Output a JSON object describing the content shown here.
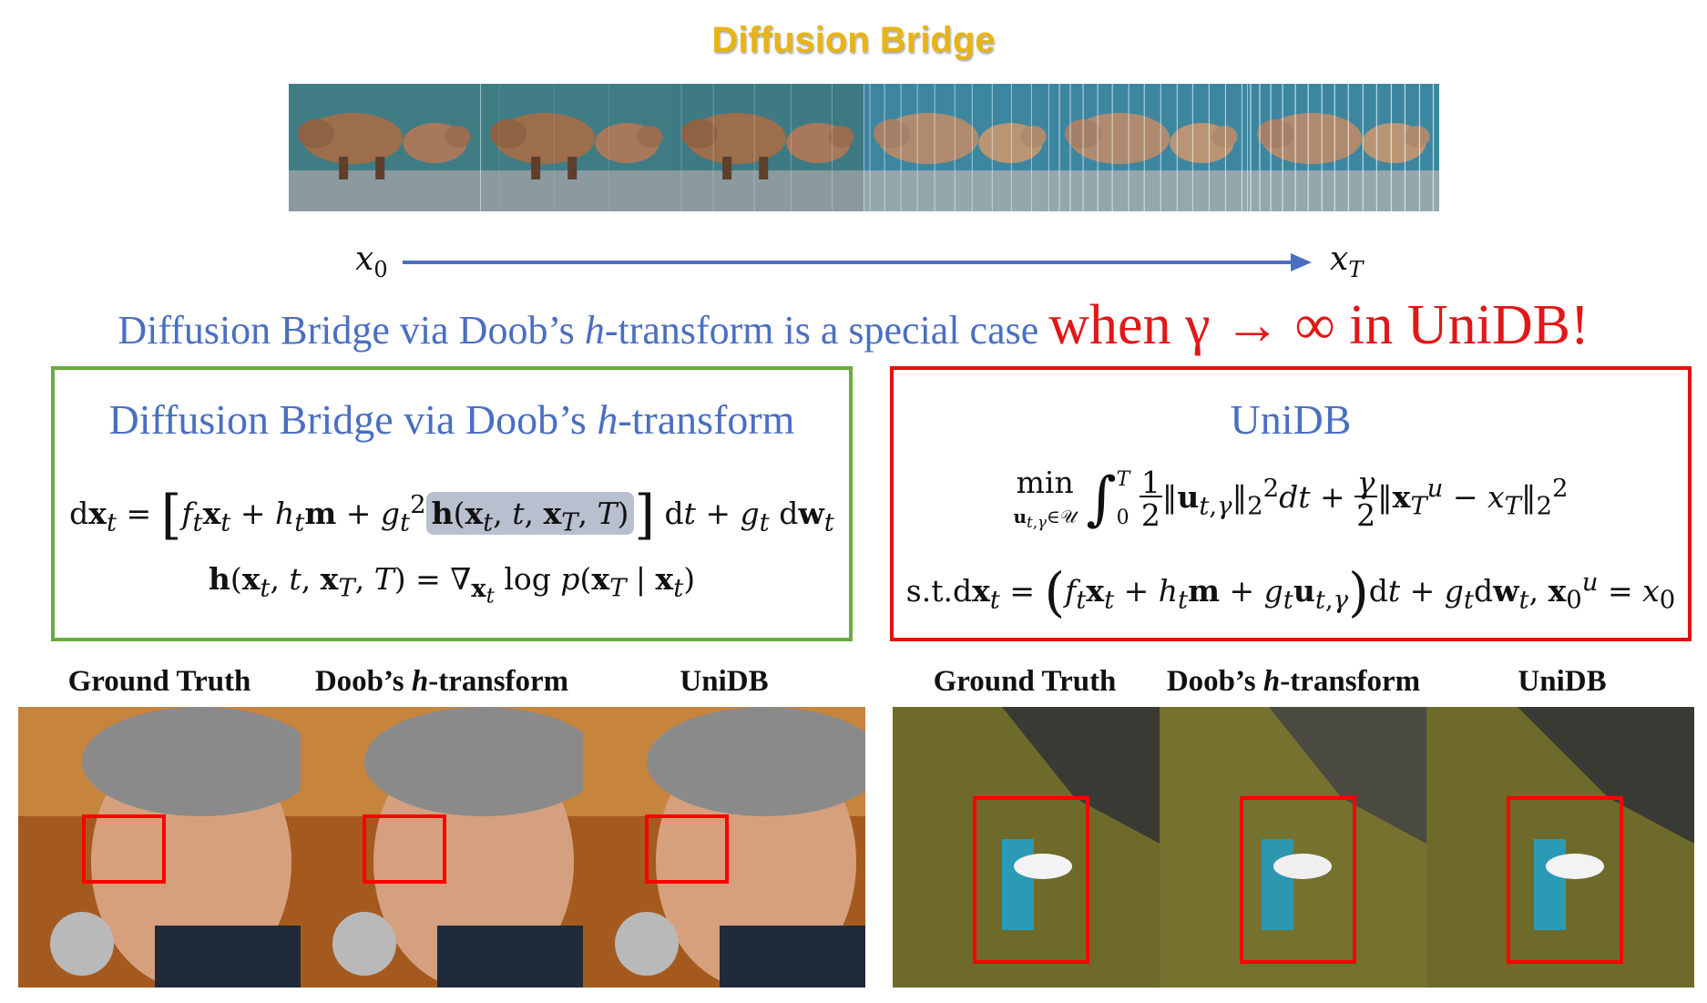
{
  "title": "Diffusion Bridge",
  "arrow": {
    "start_label": "x",
    "start_sub": "0",
    "end_label": "x",
    "end_sub": "T"
  },
  "statement": {
    "blue_part1": "Diffusion Bridge via Doob’s ",
    "blue_h": "h",
    "blue_part2": "-transform is a special case ",
    "red_part": "when γ → ∞ in UniDB!"
  },
  "left_box": {
    "title_part1": "Diffusion Bridge via Doob’s ",
    "title_h": "h",
    "title_part2": "-transform",
    "eq1_left": "dx",
    "eq1_mid": " = [ f",
    "eq1_highlight": "h(x",
    "eq1_end": "] dt + g",
    "eq2": "h(xₜ, t, x_T, T) = ∇ₓₜ log p(x_T | xₜ)"
  },
  "right_box": {
    "title": "UniDB",
    "constraint_prefix": "s.t."
  },
  "headers": {
    "left": [
      "Ground Truth",
      "Doob’s ",
      "h",
      "-transform",
      "UniDB"
    ],
    "right": [
      "Ground Truth",
      "Doob’s ",
      "h",
      "-transform",
      "UniDB"
    ]
  },
  "colors": {
    "title": "#e8b415",
    "blue": "#4a6fc1",
    "red": "#e01818",
    "green_border": "#6aaa3e",
    "red_border": "#e60f0f"
  }
}
